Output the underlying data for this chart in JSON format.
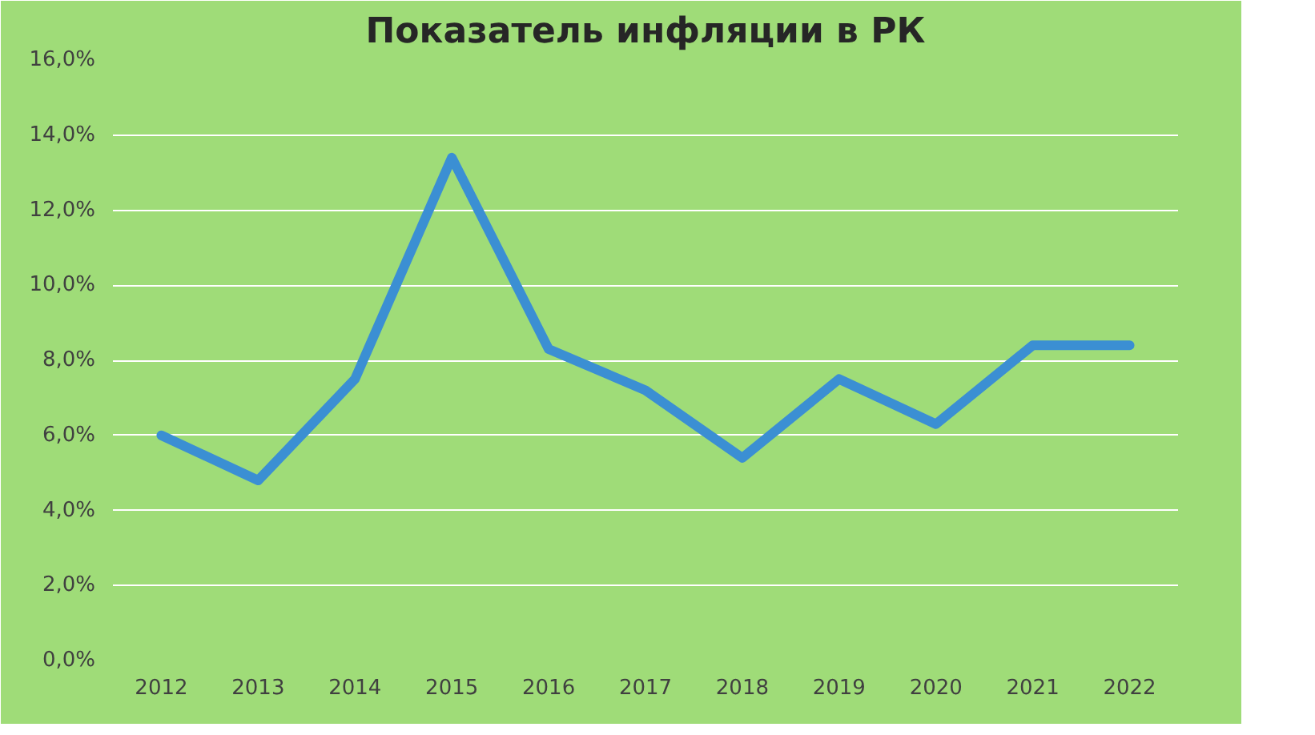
{
  "chart_data": {
    "type": "line",
    "title": "Показатель инфляции в РК",
    "categories": [
      "2012",
      "2013",
      "2014",
      "2015",
      "2016",
      "2017",
      "2018",
      "2019",
      "2020",
      "2021",
      "2022"
    ],
    "series": [
      {
        "color": "#3b8fd3",
        "values": [
          6.0,
          4.8,
          7.5,
          13.4,
          8.3,
          7.2,
          5.4,
          7.5,
          6.3,
          8.4,
          8.4
        ]
      }
    ],
    "ylim": [
      0,
      16
    ],
    "yticks": [
      {
        "value": 0,
        "label": "0,0%"
      },
      {
        "value": 2,
        "label": "2,0%"
      },
      {
        "value": 4,
        "label": "4,0%"
      },
      {
        "value": 6,
        "label": "6,0%"
      },
      {
        "value": 8,
        "label": "8,0%"
      },
      {
        "value": 10,
        "label": "10,0%"
      },
      {
        "value": 12,
        "label": "12,0%"
      },
      {
        "value": 14,
        "label": "14,0%"
      },
      {
        "value": 16,
        "label": "16,0%"
      }
    ],
    "grid": "y",
    "marker": "none",
    "line_style": "solid"
  }
}
